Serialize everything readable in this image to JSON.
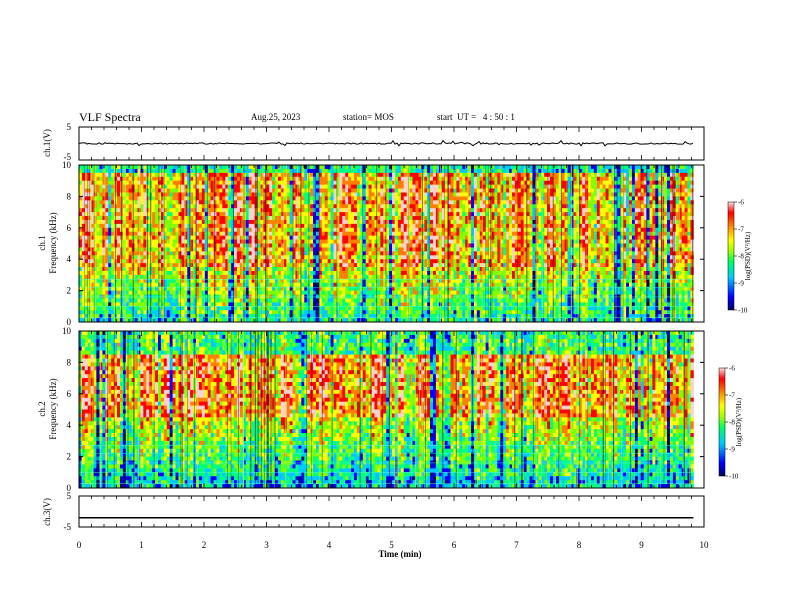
{
  "header": {
    "title": "VLF Spectra",
    "date": "Aug.25, 2023",
    "station": "station= MOS",
    "start_ut": "start  UT =   4 : 50 : 1"
  },
  "chart_data": [
    {
      "type": "line",
      "panel": "ch1-waveform",
      "ylabel": "ch.1(V)",
      "ylim": [
        -5,
        5
      ],
      "yticks": [
        "5",
        "-5"
      ],
      "series": [
        {
          "values": [
            0.0
          ]
        }
      ]
    },
    {
      "type": "heatmap",
      "panel": "ch1-spectrogram",
      "ylabel_line1": "ch.1",
      "ylabel_line2": "Frequency (kHz)",
      "ylim": [
        0,
        10
      ],
      "yticks": [
        "0",
        "2",
        "4",
        "6",
        "8",
        "10"
      ],
      "colorbar": {
        "label": "log(PSD)(V²/Hz)",
        "range": [
          -10,
          -6
        ],
        "ticks": [
          "-6",
          "-7",
          "-8",
          "-9",
          "-10"
        ]
      }
    },
    {
      "type": "heatmap",
      "panel": "ch2-spectrogram",
      "ylabel_line1": "ch.2",
      "ylabel_line2": "Frequency (kHz)",
      "ylim": [
        0,
        10
      ],
      "yticks": [
        "0",
        "2",
        "4",
        "6",
        "8",
        "10"
      ],
      "colorbar": {
        "label": "log(PSD)(V²/Hz)",
        "range": [
          -10,
          -6
        ],
        "ticks": [
          "-6",
          "-7",
          "-8",
          "-9",
          "-10"
        ]
      }
    },
    {
      "type": "line",
      "panel": "ch3-waveform",
      "ylabel": "ch.3(V)",
      "ylim": [
        -5,
        5
      ],
      "yticks": [
        "5",
        "-5"
      ],
      "series": [
        {
          "values": [
            -2.0
          ]
        }
      ]
    }
  ],
  "x_axis": {
    "label": "Time  (min)",
    "range": [
      0,
      10
    ],
    "data_end": 9.83,
    "ticks": [
      "0",
      "1",
      "2",
      "3",
      "4",
      "5",
      "6",
      "7",
      "8",
      "9",
      "10"
    ]
  },
  "colors": {
    "scale": [
      "#000080",
      "#0000ff",
      "#00c8ff",
      "#00ff80",
      "#80ff00",
      "#ffff00",
      "#ff8000",
      "#ff0000",
      "#ffd0d0"
    ]
  }
}
